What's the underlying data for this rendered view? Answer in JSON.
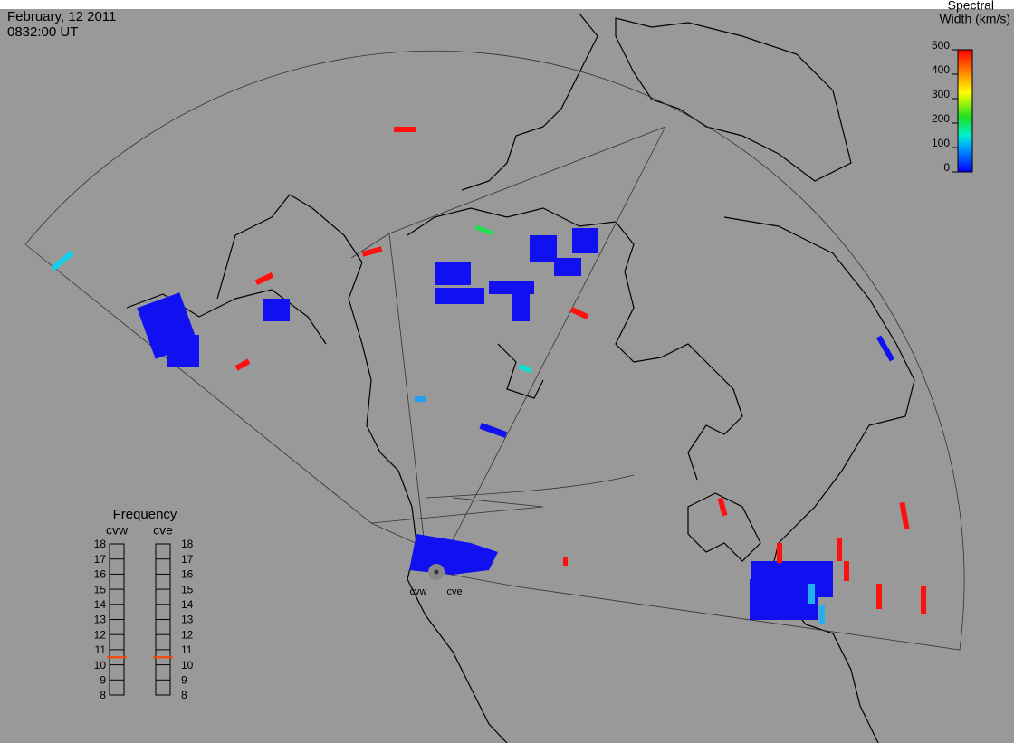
{
  "header": {
    "date": "February, 12 2011",
    "time": "0832:00 UT"
  },
  "colorbar": {
    "title_line1": "Spectral",
    "title_line2": "Width (km/s)",
    "range": [
      0,
      500
    ],
    "ticks": [
      0,
      100,
      200,
      300,
      400,
      500
    ]
  },
  "frequency": {
    "title": "Frequency",
    "range": [
      8,
      18
    ],
    "ticks": [
      8,
      9,
      10,
      11,
      12,
      13,
      14,
      15,
      16,
      17,
      18
    ],
    "radars": [
      {
        "name": "cvw",
        "value": 10.5
      },
      {
        "name": "cve",
        "value": 10.5
      }
    ]
  },
  "radar_labels": [
    "cvw",
    "cve"
  ]
}
